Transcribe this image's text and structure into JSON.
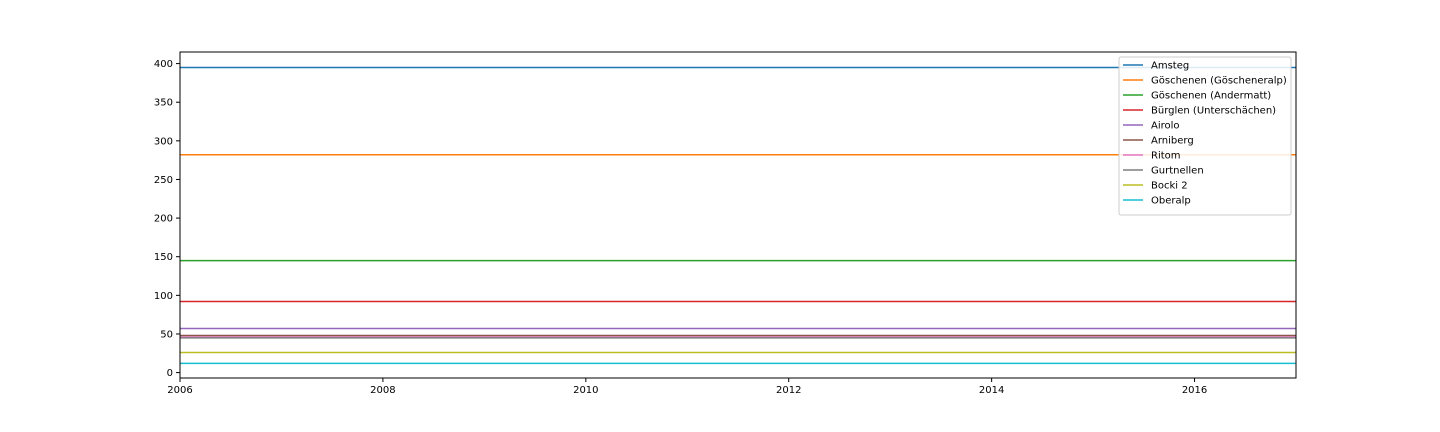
{
  "chart_data": {
    "type": "line",
    "title": "",
    "xlabel": "",
    "ylabel": "",
    "xlim": [
      2006,
      2017
    ],
    "ylim": [
      -7,
      415
    ],
    "x_ticks": [
      2006,
      2008,
      2010,
      2012,
      2014,
      2016
    ],
    "y_ticks": [
      0,
      50,
      100,
      150,
      200,
      250,
      300,
      350,
      400
    ],
    "grid": false,
    "legend_position": "top-right",
    "x": [
      2006,
      2017
    ],
    "series": [
      {
        "name": "Amsteg",
        "color": "#1f77b4",
        "values": [
          395,
          395
        ]
      },
      {
        "name": "Göschenen (Göscheneralp)",
        "color": "#ff7f0e",
        "values": [
          282,
          282
        ]
      },
      {
        "name": "Göschenen (Andermatt)",
        "color": "#2ca02c",
        "values": [
          145,
          145
        ]
      },
      {
        "name": "Bürglen (Unterschächen)",
        "color": "#d62728",
        "values": [
          92,
          92
        ]
      },
      {
        "name": "Airolo",
        "color": "#9467bd",
        "values": [
          57,
          57
        ]
      },
      {
        "name": "Arniberg",
        "color": "#8c564b",
        "values": [
          48,
          48
        ]
      },
      {
        "name": "Ritom",
        "color": "#e377c2",
        "values": [
          46,
          46
        ]
      },
      {
        "name": "Gurtnellen",
        "color": "#7f7f7f",
        "values": [
          45,
          45
        ]
      },
      {
        "name": "Bocki 2",
        "color": "#bcbd22",
        "values": [
          26,
          26
        ]
      },
      {
        "name": "Oberalp",
        "color": "#17becf",
        "values": [
          12,
          12
        ]
      }
    ]
  }
}
